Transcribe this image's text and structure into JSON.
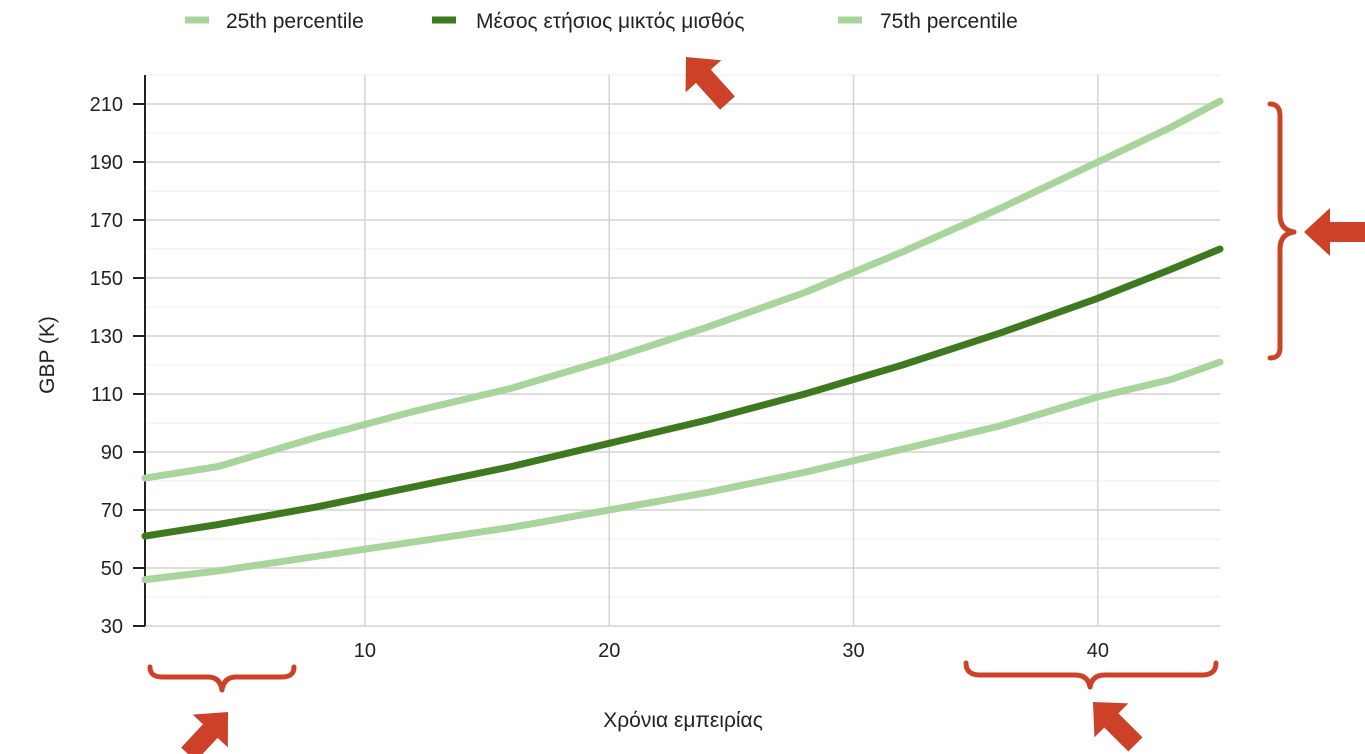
{
  "chart_data": {
    "type": "line",
    "xlabel": "Χρόνια εμπειρίας",
    "ylabel": "GBP (K)",
    "xlim": [
      1,
      45
    ],
    "ylim": [
      30,
      220
    ],
    "x_ticks": [
      10,
      20,
      30,
      40
    ],
    "y_ticks": [
      30,
      50,
      70,
      90,
      110,
      130,
      150,
      170,
      190,
      210
    ],
    "legend": "top",
    "grid": true,
    "x": [
      1,
      4,
      8,
      12,
      16,
      20,
      24,
      28,
      32,
      36,
      40,
      43,
      45
    ],
    "series": [
      {
        "name": "25th percentile",
        "color": "#a8d59b",
        "values": [
          46,
          49,
          54,
          59,
          64,
          70,
          76,
          83,
          91,
          99,
          109,
          115,
          121
        ]
      },
      {
        "name": "Μέσος ετήσιος μικτός μισθός",
        "color": "#3d7a1f",
        "values": [
          61,
          65,
          71,
          78,
          85,
          93,
          101,
          110,
          120,
          131,
          143,
          153,
          160
        ]
      },
      {
        "name": "75th percentile",
        "color": "#a8d59b",
        "values": [
          81,
          85,
          95,
          104,
          112,
          122,
          133,
          145,
          159,
          174,
          190,
          202,
          211
        ]
      }
    ]
  },
  "annotations": {
    "arrow_color": "#cc4128",
    "items": [
      "arrow-legend",
      "brace-right-range",
      "brace-x-start",
      "brace-x-end"
    ]
  }
}
